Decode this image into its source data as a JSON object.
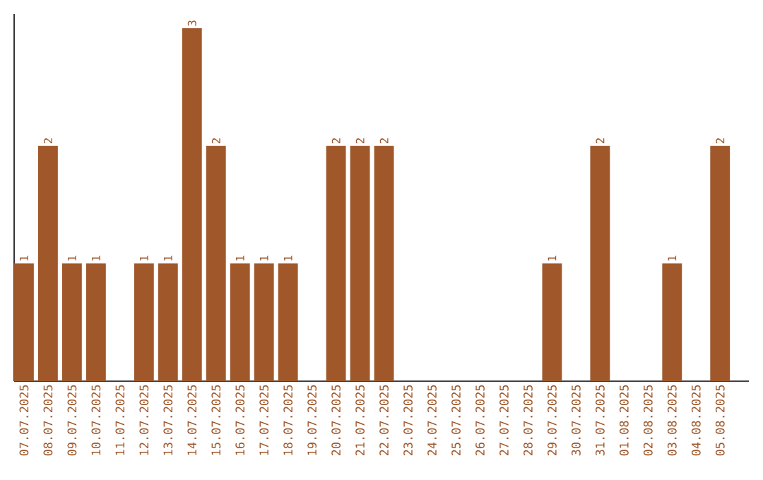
{
  "chart_data": {
    "type": "bar",
    "categories": [
      "07.07.2025",
      "08.07.2025",
      "09.07.2025",
      "10.07.2025",
      "11.07.2025",
      "12.07.2025",
      "13.07.2025",
      "14.07.2025",
      "15.07.2025",
      "16.07.2025",
      "17.07.2025",
      "18.07.2025",
      "19.07.2025",
      "20.07.2025",
      "21.07.2025",
      "22.07.2025",
      "23.07.2025",
      "24.07.2025",
      "25.07.2025",
      "26.07.2025",
      "27.07.2025",
      "28.07.2025",
      "29.07.2025",
      "30.07.2025",
      "31.07.2025",
      "01.08.2025",
      "02.08.2025",
      "03.08.2025",
      "04.08.2025",
      "05.08.2025"
    ],
    "values": [
      1,
      2,
      1,
      1,
      0,
      1,
      1,
      3,
      2,
      1,
      1,
      1,
      0,
      2,
      2,
      2,
      0,
      0,
      0,
      0,
      0,
      0,
      1,
      0,
      2,
      0,
      0,
      1,
      0,
      2
    ],
    "value_labels": [
      "1",
      "2",
      "1",
      "1",
      null,
      "1",
      "1",
      "3",
      "2",
      "1",
      "1",
      "1",
      null,
      "2",
      "2",
      "2",
      null,
      null,
      null,
      null,
      null,
      null,
      "1",
      null,
      "2",
      null,
      null,
      "1",
      null,
      "2"
    ],
    "color": "#a0572a"
  }
}
